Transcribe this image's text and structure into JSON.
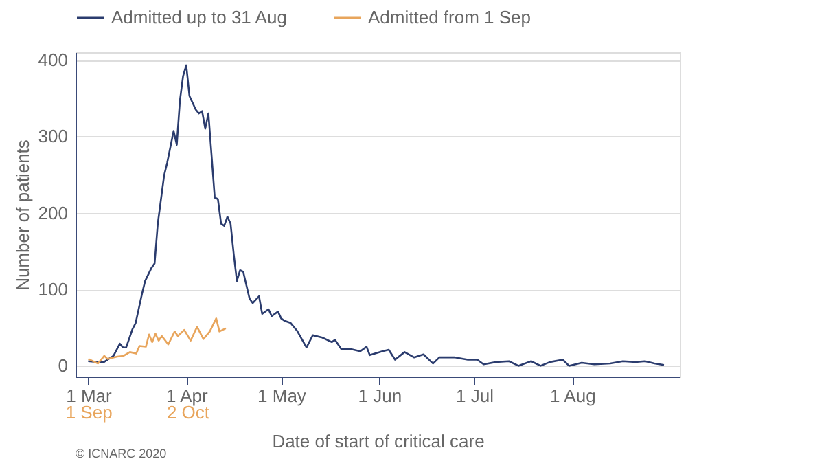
{
  "chart_data": {
    "type": "line",
    "xlabel": "Date of start of critical care",
    "ylabel": "Number of patients",
    "annotations": [
      "© ICNARC 2020"
    ],
    "xlim": [
      "2020-02-26",
      "2020-09-04"
    ],
    "xticks": [
      {
        "value": "2020-03-01",
        "label": "1 Mar"
      },
      {
        "value": "2020-04-01",
        "label": "1 Apr"
      },
      {
        "value": "2020-05-01",
        "label": "1 May"
      },
      {
        "value": "2020-06-01",
        "label": "1 Jun"
      },
      {
        "value": "2020-07-01",
        "label": "1 Jul"
      },
      {
        "value": "2020-08-01",
        "label": "1 Aug"
      }
    ],
    "x2lim": [
      "2020-08-28",
      "2021-03-05"
    ],
    "x2ticks": [
      {
        "value": "2020-09-01",
        "label": "1 Sep"
      },
      {
        "value": "2020-10-02",
        "label": "2 Oct"
      }
    ],
    "ylim": [
      -14,
      410
    ],
    "yticks": [
      0,
      100,
      200,
      300,
      400
    ],
    "grid": "y",
    "legend": "top",
    "marker": "none",
    "line_style": "solid",
    "series": [
      {
        "name": "Admitted up to 31 Aug",
        "color": "#2b3c6e",
        "x": [
          "2020-03-01",
          "2020-03-04",
          "2020-03-06",
          "2020-03-09",
          "2020-03-11",
          "2020-03-12",
          "2020-03-13",
          "2020-03-15",
          "2020-03-16",
          "2020-03-18",
          "2020-03-19",
          "2020-03-21",
          "2020-03-22",
          "2020-03-23",
          "2020-03-25",
          "2020-03-26",
          "2020-03-28",
          "2020-03-29",
          "2020-03-30",
          "2020-03-31",
          "2020-04-01",
          "2020-04-02",
          "2020-04-04",
          "2020-04-05",
          "2020-04-06",
          "2020-04-07",
          "2020-04-08",
          "2020-04-10",
          "2020-04-11",
          "2020-04-12",
          "2020-04-13",
          "2020-04-14",
          "2020-04-15",
          "2020-04-16",
          "2020-04-17",
          "2020-04-18",
          "2020-04-19",
          "2020-04-21",
          "2020-04-22",
          "2020-04-24",
          "2020-04-25",
          "2020-04-27",
          "2020-04-28",
          "2020-04-30",
          "2020-05-01",
          "2020-05-02",
          "2020-05-04",
          "2020-05-06",
          "2020-05-09",
          "2020-05-11",
          "2020-05-14",
          "2020-05-17",
          "2020-05-18",
          "2020-05-20",
          "2020-05-23",
          "2020-05-26",
          "2020-05-28",
          "2020-05-29",
          "2020-06-02",
          "2020-06-04",
          "2020-06-06",
          "2020-06-09",
          "2020-06-12",
          "2020-06-15",
          "2020-06-18",
          "2020-06-20",
          "2020-06-25",
          "2020-06-29",
          "2020-07-02",
          "2020-07-04",
          "2020-07-08",
          "2020-07-12",
          "2020-07-15",
          "2020-07-19",
          "2020-07-22",
          "2020-07-25",
          "2020-07-29",
          "2020-07-31",
          "2020-08-04",
          "2020-08-08",
          "2020-08-13",
          "2020-08-17",
          "2020-08-21",
          "2020-08-24",
          "2020-08-27",
          "2020-08-30"
        ],
        "values": [
          6,
          5,
          5,
          13,
          29,
          24,
          24,
          48,
          56,
          94,
          111,
          128,
          134,
          186,
          249,
          266,
          307,
          289,
          347,
          379,
          393,
          353,
          335,
          330,
          333,
          310,
          330,
          220,
          218,
          186,
          183,
          195,
          186,
          146,
          111,
          125,
          123,
          88,
          82,
          91,
          68,
          74,
          65,
          71,
          62,
          59,
          56,
          46,
          24,
          40,
          37,
          31,
          34,
          22,
          22,
          19,
          25,
          14,
          19,
          21,
          8,
          18,
          11,
          15,
          3,
          11,
          11,
          8,
          8,
          2,
          5,
          6,
          0,
          6,
          0,
          5,
          8,
          0,
          4,
          2,
          3,
          6,
          5,
          6,
          3,
          1
        ]
      },
      {
        "name": "Admitted from 1 Sep",
        "color": "#e8a55c",
        "axis": "x2",
        "x": [
          "2020-09-01",
          "2020-09-03",
          "2020-09-04",
          "2020-09-06",
          "2020-09-07",
          "2020-09-10",
          "2020-09-12",
          "2020-09-14",
          "2020-09-16",
          "2020-09-17",
          "2020-09-19",
          "2020-09-20",
          "2020-09-21",
          "2020-09-22",
          "2020-09-23",
          "2020-09-24",
          "2020-09-26",
          "2020-09-28",
          "2020-09-29",
          "2020-10-01",
          "2020-10-03",
          "2020-10-05",
          "2020-10-07",
          "2020-10-09",
          "2020-10-11",
          "2020-10-12",
          "2020-10-14"
        ],
        "values": [
          9,
          5,
          3,
          13,
          9,
          12,
          13,
          18,
          16,
          26,
          25,
          41,
          31,
          42,
          33,
          39,
          28,
          45,
          39,
          47,
          33,
          51,
          35,
          45,
          62,
          45,
          49
        ]
      }
    ]
  }
}
